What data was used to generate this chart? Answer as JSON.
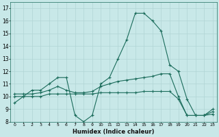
{
  "xlabel": "Humidex (Indice chaleur)",
  "bg_color": "#c8e8e8",
  "grid_color": "#b0d4d4",
  "line_color": "#1a6b5a",
  "xlim": [
    -0.5,
    23.5
  ],
  "ylim": [
    8,
    17.5
  ],
  "xticks": [
    0,
    1,
    2,
    3,
    4,
    5,
    6,
    7,
    8,
    9,
    10,
    11,
    12,
    13,
    14,
    15,
    16,
    17,
    18,
    19,
    20,
    21,
    22,
    23
  ],
  "yticks": [
    8,
    9,
    10,
    11,
    12,
    13,
    14,
    15,
    16,
    17
  ],
  "line1_y": [
    9.5,
    10.0,
    10.5,
    10.5,
    11.0,
    11.5,
    11.5,
    8.5,
    8.0,
    8.5,
    11.0,
    11.5,
    13.0,
    14.5,
    16.6,
    16.6,
    16.0,
    15.2,
    12.5,
    12.0,
    9.8,
    8.5,
    8.5,
    9.0
  ],
  "line2_y": [
    10.2,
    10.2,
    10.2,
    10.3,
    10.5,
    10.8,
    10.5,
    10.3,
    10.3,
    10.4,
    10.8,
    11.0,
    11.2,
    11.3,
    11.4,
    11.5,
    11.6,
    11.8,
    11.8,
    10.0,
    8.5,
    8.5,
    8.5,
    8.8
  ],
  "line3_y": [
    10.0,
    10.0,
    10.0,
    10.0,
    10.2,
    10.2,
    10.2,
    10.2,
    10.2,
    10.2,
    10.3,
    10.3,
    10.3,
    10.3,
    10.3,
    10.4,
    10.4,
    10.4,
    10.4,
    9.8,
    8.5,
    8.5,
    8.5,
    8.6
  ]
}
